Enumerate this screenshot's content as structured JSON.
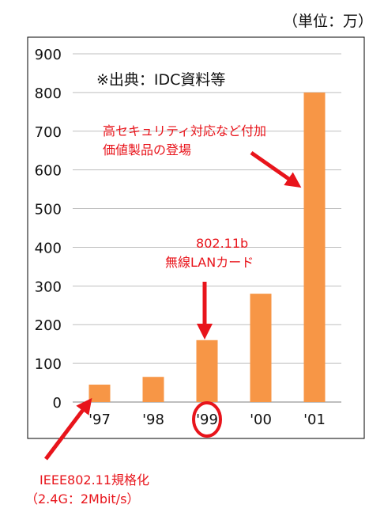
{
  "unit_label": "（単位：万）",
  "source_label": "※出典：IDC資料等",
  "annotations": {
    "security": [
      "高セキュリティ対応など付加",
      "価値製品の登場"
    ],
    "wlan": [
      "802.11b",
      "無線LANカード"
    ],
    "ieee": [
      "IEEE802.11規格化",
      "（2.4G：2Mbit/s）"
    ]
  },
  "colors": {
    "bar": "#f79646",
    "annotation": "#e8141b",
    "grid": "#bfbfbf"
  },
  "chart_data": {
    "type": "bar",
    "categories": [
      "'97",
      "'98",
      "'99",
      "'00",
      "'01"
    ],
    "values": [
      45,
      65,
      160,
      280,
      800
    ],
    "ylim": [
      0,
      900
    ],
    "yticks": [
      0,
      100,
      200,
      300,
      400,
      500,
      600,
      700,
      800,
      900
    ],
    "highlighted_category": "'99",
    "grid": true,
    "legend": "none"
  }
}
